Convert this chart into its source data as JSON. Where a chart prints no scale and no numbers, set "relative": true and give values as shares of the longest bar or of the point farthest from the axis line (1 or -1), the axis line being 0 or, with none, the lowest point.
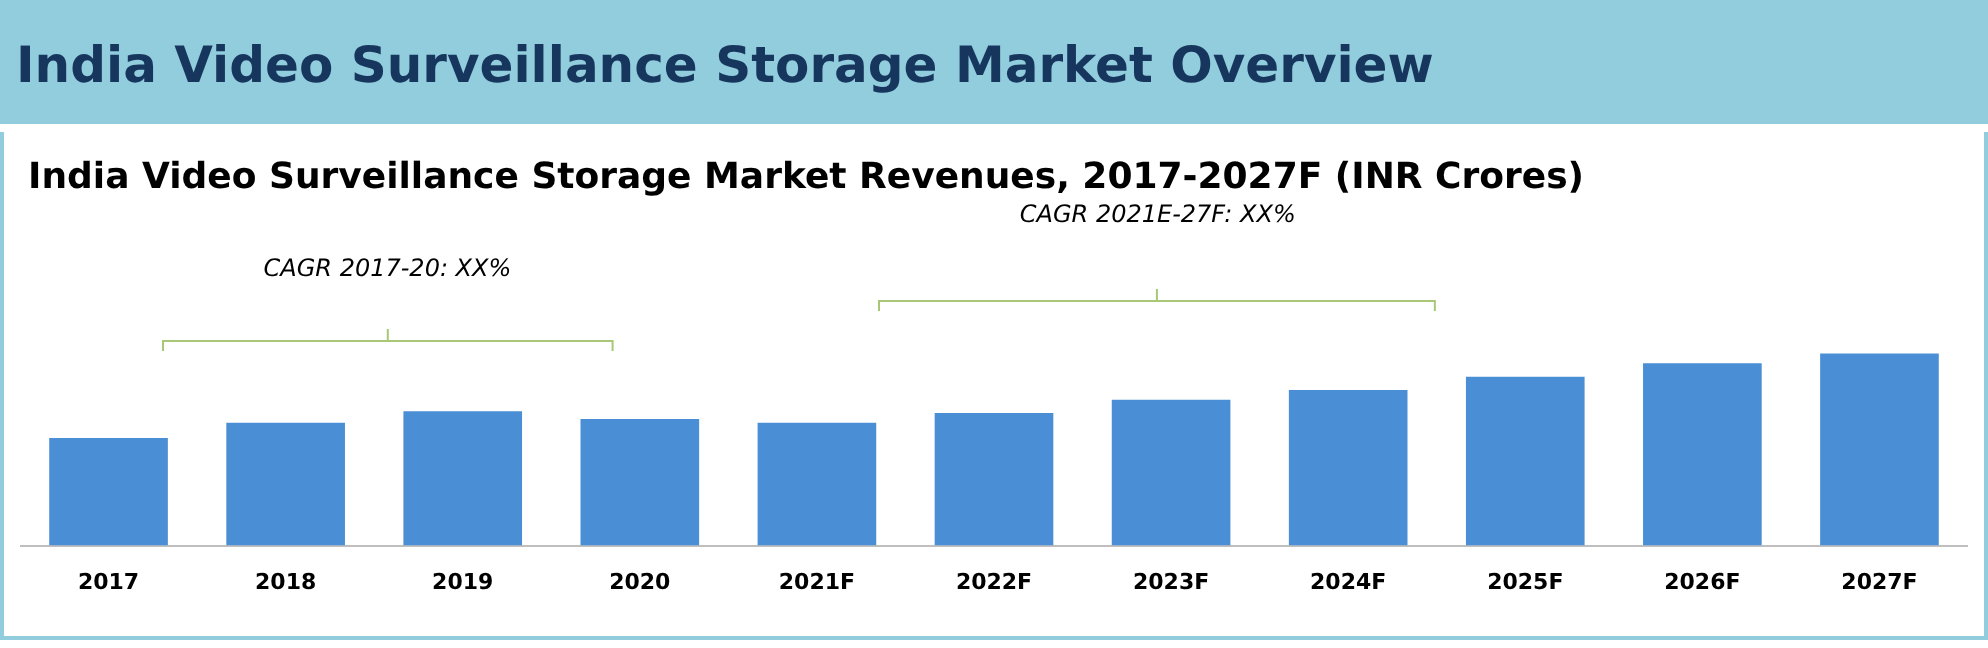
{
  "chart_data": {
    "type": "bar",
    "title": "India Video Surveillance Storage Market Overview",
    "subtitle": "India Video Surveillance Storage Market Revenues, 2017-2027F (INR Crores)",
    "categories": [
      "2017",
      "2018",
      "2019",
      "2020",
      "2021F",
      "2022F",
      "2023F",
      "2024F",
      "2025F",
      "2026F",
      "2027F"
    ],
    "values": [
      0.56,
      0.64,
      0.7,
      0.66,
      0.64,
      0.69,
      0.76,
      0.81,
      0.88,
      0.95,
      1
    ],
    "color": "#4a8fd6",
    "relative": true,
    "annotations": [
      "CAGR 2017-20: XX%",
      "CAGR 2021E-27F: XX%"
    ]
  }
}
